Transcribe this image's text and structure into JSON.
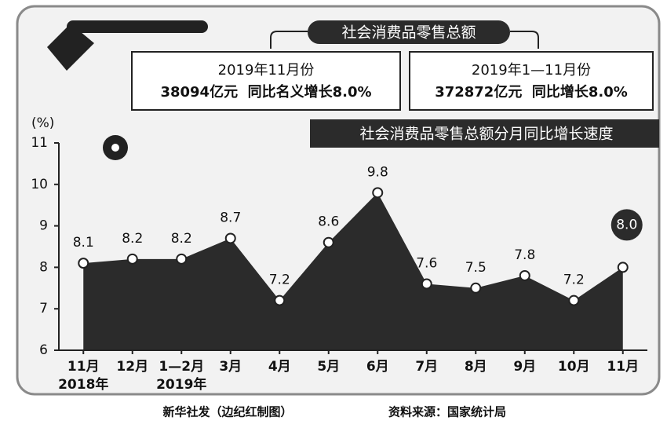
{
  "header": {
    "title": "社会消费品零售总额",
    "box_left": {
      "line1": "2019年11月份",
      "line2": "38094亿元  同比名义增长8.0%"
    },
    "box_right": {
      "line1": "2019年1—11月份",
      "line2": "372872亿元  同比增长8.0%"
    }
  },
  "chart_data": {
    "type": "area",
    "title": "社会消费品零售总额分月同比增长速度",
    "y_label": "(%)",
    "categories": [
      "11月",
      "12月",
      "1—2月",
      "3月",
      "4月",
      "5月",
      "6月",
      "7月",
      "8月",
      "9月",
      "10月",
      "11月"
    ],
    "category_years": [
      "2018年",
      null,
      "2019年",
      null,
      null,
      null,
      null,
      null,
      null,
      null,
      null,
      null
    ],
    "values": [
      8.1,
      8.2,
      8.2,
      8.7,
      7.2,
      8.6,
      9.8,
      7.6,
      7.5,
      7.8,
      7.2,
      8.0
    ],
    "value_labels": [
      "8.1",
      "8.2",
      "8.2",
      "8.7",
      "7.2",
      "8.6",
      "9.8",
      "7.6",
      "7.5",
      "7.8",
      "7.2",
      "8.0"
    ],
    "color": "#2b2b2b",
    "ylim": [
      6,
      11
    ],
    "yticks": [
      6,
      7,
      8,
      9,
      10,
      11
    ]
  },
  "footer": {
    "credit": "新华社发（边纪红制图）",
    "source": "资料来源：国家统计局"
  }
}
